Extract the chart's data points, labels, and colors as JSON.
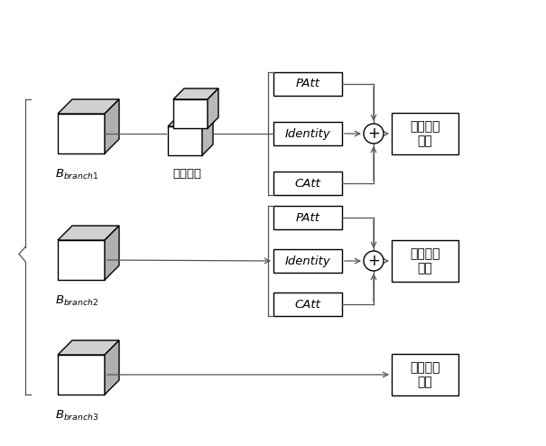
{
  "figsize": [
    6.05,
    4.94
  ],
  "dpi": 100,
  "bg_color": "#ffffff",
  "branch1_label": "$B_{branch1}$",
  "branch2_label": "$B_{branch2}$",
  "branch3_label": "$B_{branch3}$",
  "shuiping_label": "水平切分",
  "pool_label": "全局平均\n池化",
  "patt_label": "PAtt",
  "identity_label": "Identity",
  "catt_label": "CAtt",
  "cube_front": "#ffffff",
  "cube_top": "#d0d0d0",
  "cube_side": "#b0b0b0",
  "line_color": "#555555",
  "edge_color": "#000000"
}
